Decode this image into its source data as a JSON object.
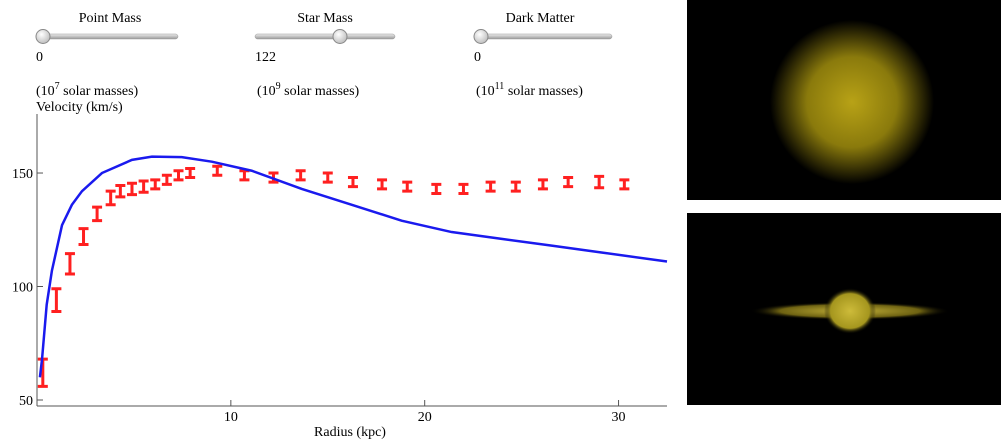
{
  "controls": [
    {
      "label": "Point Mass",
      "value": "0",
      "unit": [
        "(10",
        "7",
        " solar masses)"
      ]
    },
    {
      "label": "Star Mass",
      "value": "122",
      "unit": [
        "(10",
        "9",
        " solar masses)"
      ]
    },
    {
      "label": "Dark Matter",
      "value": "0",
      "unit": [
        "(10",
        "11",
        " solar masses)"
      ]
    }
  ],
  "chart_data": {
    "type": "line",
    "xlabel": "Radius (kpc)",
    "ylabel": "Velocity (km/s)",
    "xlim": [
      0,
      32.5
    ],
    "ylim": [
      50,
      176
    ],
    "xticks": [
      10,
      20,
      30
    ],
    "yticks": [
      50,
      100,
      150
    ],
    "series": [
      {
        "style": "errorbar",
        "color": "#ff2020",
        "x": [
          0.3,
          1.0,
          1.7,
          2.4,
          3.1,
          3.8,
          4.3,
          4.9,
          5.5,
          6.1,
          6.7,
          7.3,
          7.9,
          9.3,
          10.7,
          12.2,
          13.6,
          15.0,
          16.3,
          17.8,
          19.1,
          20.6,
          22.0,
          23.4,
          24.7,
          26.1,
          27.4,
          29.0,
          30.3
        ],
        "values": [
          62,
          94,
          110,
          122,
          132,
          139,
          142,
          143,
          144,
          145,
          147,
          149,
          150,
          151,
          149,
          148,
          149,
          148,
          146,
          145,
          144,
          143,
          143,
          144,
          144,
          145,
          146,
          146,
          145
        ],
        "errors": [
          6,
          5,
          4.5,
          3.5,
          3,
          3,
          2.5,
          2.5,
          2.5,
          2,
          2,
          2,
          2,
          2,
          2,
          2,
          2,
          2,
          2,
          2,
          2,
          2,
          2,
          2,
          2,
          2,
          2,
          2.5,
          2
        ]
      },
      {
        "style": "line",
        "color": "#1a1aee",
        "x": [
          0.15,
          0.26,
          0.5,
          0.77,
          1.29,
          1.8,
          2.32,
          3.35,
          4.9,
          5.93,
          7.47,
          9.02,
          11.08,
          13.66,
          16.24,
          18.81,
          21.39,
          23.97,
          26.55,
          29.12,
          32.5
        ],
        "values": [
          60,
          68,
          92,
          107,
          127,
          136,
          142,
          150,
          155.8,
          157.2,
          157,
          155,
          151,
          143,
          136,
          129,
          124,
          121,
          118,
          115,
          111
        ]
      }
    ]
  }
}
